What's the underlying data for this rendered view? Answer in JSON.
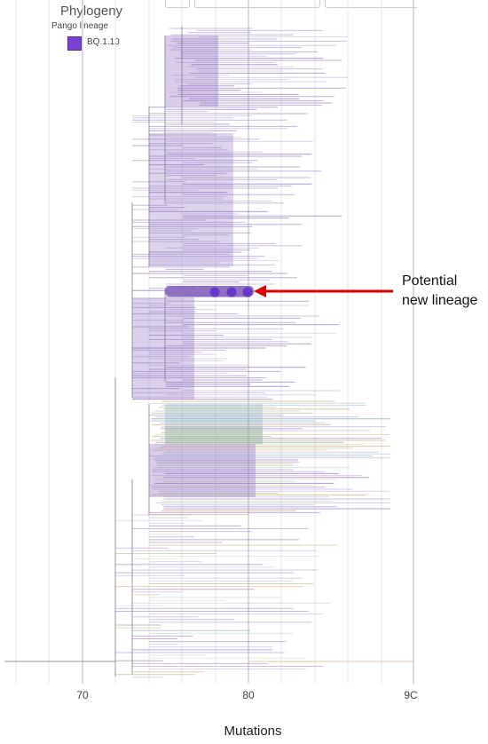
{
  "panel": {
    "title": "Phylogeny",
    "legend": {
      "heading": "Pango lineage",
      "items": [
        {
          "label": "BQ.1.10",
          "color": "#7b3fd1"
        }
      ]
    }
  },
  "axis": {
    "xlabel": "Mutations",
    "ticks": [
      "70",
      "80",
      "9C"
    ]
  },
  "annotation": {
    "line1": "Potential",
    "line2": "new lineage"
  },
  "colors": {
    "primary": "#8e6cc0",
    "teal": "#6fa0b2",
    "green": "#9bb67d",
    "orange": "#d3a36a",
    "arrow": "#dd0000",
    "node": "#6a35d0"
  }
}
